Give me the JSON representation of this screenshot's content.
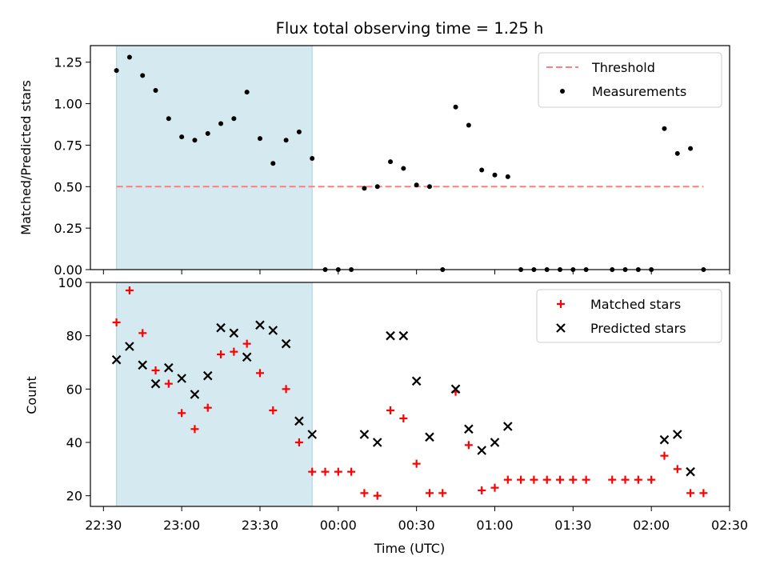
{
  "chart_data": [
    {
      "type": "scatter",
      "title": "Flux total observing time = 1.25 h",
      "xlabel": "",
      "ylabel": "Matched/Predicted stars",
      "xlim": [
        "22:25",
        "02:30"
      ],
      "ylim": [
        0,
        1.35
      ],
      "yticks": [
        "0.00",
        "0.25",
        "0.50",
        "0.75",
        "1.00",
        "1.25"
      ],
      "shaded_interval": [
        "22:35",
        "23:50"
      ],
      "shade_color": "#d4e9f0",
      "legend_position": "upper right",
      "series": [
        {
          "name": "Threshold",
          "kind": "dashed-line",
          "color": "#ff7f7f",
          "points": [
            {
              "x": "22:35",
              "y": 0.5
            },
            {
              "x": "02:20",
              "y": 0.5
            }
          ]
        },
        {
          "name": "Measurements",
          "kind": "dot",
          "color": "#000000",
          "points": [
            {
              "x": "22:35",
              "y": 1.2
            },
            {
              "x": "22:40",
              "y": 1.28
            },
            {
              "x": "22:45",
              "y": 1.17
            },
            {
              "x": "22:50",
              "y": 1.08
            },
            {
              "x": "22:55",
              "y": 0.91
            },
            {
              "x": "23:00",
              "y": 0.8
            },
            {
              "x": "23:05",
              "y": 0.78
            },
            {
              "x": "23:10",
              "y": 0.82
            },
            {
              "x": "23:15",
              "y": 0.88
            },
            {
              "x": "23:20",
              "y": 0.91
            },
            {
              "x": "23:25",
              "y": 1.07
            },
            {
              "x": "23:30",
              "y": 0.79
            },
            {
              "x": "23:35",
              "y": 0.64
            },
            {
              "x": "23:40",
              "y": 0.78
            },
            {
              "x": "23:45",
              "y": 0.83
            },
            {
              "x": "23:50",
              "y": 0.67
            },
            {
              "x": "23:55",
              "y": 0.0
            },
            {
              "x": "00:00",
              "y": 0.0
            },
            {
              "x": "00:05",
              "y": 0.0
            },
            {
              "x": "00:10",
              "y": 0.49
            },
            {
              "x": "00:15",
              "y": 0.5
            },
            {
              "x": "00:20",
              "y": 0.65
            },
            {
              "x": "00:25",
              "y": 0.61
            },
            {
              "x": "00:30",
              "y": 0.51
            },
            {
              "x": "00:35",
              "y": 0.5
            },
            {
              "x": "00:40",
              "y": 0.0
            },
            {
              "x": "00:45",
              "y": 0.98
            },
            {
              "x": "00:50",
              "y": 0.87
            },
            {
              "x": "00:55",
              "y": 0.6
            },
            {
              "x": "01:00",
              "y": 0.57
            },
            {
              "x": "01:05",
              "y": 0.56
            },
            {
              "x": "01:10",
              "y": 0.0
            },
            {
              "x": "01:15",
              "y": 0.0
            },
            {
              "x": "01:20",
              "y": 0.0
            },
            {
              "x": "01:25",
              "y": 0.0
            },
            {
              "x": "01:30",
              "y": 0.0
            },
            {
              "x": "01:35",
              "y": 0.0
            },
            {
              "x": "01:45",
              "y": 0.0
            },
            {
              "x": "01:50",
              "y": 0.0
            },
            {
              "x": "01:55",
              "y": 0.0
            },
            {
              "x": "02:00",
              "y": 0.0
            },
            {
              "x": "02:05",
              "y": 0.85
            },
            {
              "x": "02:10",
              "y": 0.7
            },
            {
              "x": "02:15",
              "y": 0.73
            },
            {
              "x": "02:20",
              "y": 0.0
            }
          ]
        }
      ]
    },
    {
      "type": "scatter",
      "title": "",
      "xlabel": "Time (UTC)",
      "ylabel": "Count",
      "xlim": [
        "22:25",
        "02:30"
      ],
      "ylim": [
        16,
        100
      ],
      "yticks": [
        "20",
        "40",
        "60",
        "80",
        "100"
      ],
      "xticks": [
        "22:30",
        "23:00",
        "23:30",
        "00:00",
        "00:30",
        "01:00",
        "01:30",
        "02:00",
        "02:30"
      ],
      "shaded_interval": [
        "22:35",
        "23:50"
      ],
      "shade_color": "#d4e9f0",
      "legend_position": "upper right",
      "series": [
        {
          "name": "Matched stars",
          "kind": "plus",
          "color": "#ff0000",
          "points": [
            {
              "x": "22:35",
              "y": 85
            },
            {
              "x": "22:40",
              "y": 97
            },
            {
              "x": "22:45",
              "y": 81
            },
            {
              "x": "22:50",
              "y": 67
            },
            {
              "x": "22:55",
              "y": 62
            },
            {
              "x": "23:00",
              "y": 51
            },
            {
              "x": "23:05",
              "y": 45
            },
            {
              "x": "23:10",
              "y": 53
            },
            {
              "x": "23:15",
              "y": 73
            },
            {
              "x": "23:20",
              "y": 74
            },
            {
              "x": "23:25",
              "y": 77
            },
            {
              "x": "23:30",
              "y": 66
            },
            {
              "x": "23:35",
              "y": 52
            },
            {
              "x": "23:40",
              "y": 60
            },
            {
              "x": "23:45",
              "y": 40
            },
            {
              "x": "23:50",
              "y": 29
            },
            {
              "x": "23:55",
              "y": 29
            },
            {
              "x": "00:00",
              "y": 29
            },
            {
              "x": "00:05",
              "y": 29
            },
            {
              "x": "00:10",
              "y": 21
            },
            {
              "x": "00:15",
              "y": 20
            },
            {
              "x": "00:20",
              "y": 52
            },
            {
              "x": "00:25",
              "y": 49
            },
            {
              "x": "00:30",
              "y": 32
            },
            {
              "x": "00:35",
              "y": 21
            },
            {
              "x": "00:40",
              "y": 21
            },
            {
              "x": "00:45",
              "y": 59
            },
            {
              "x": "00:50",
              "y": 39
            },
            {
              "x": "00:55",
              "y": 22
            },
            {
              "x": "01:00",
              "y": 23
            },
            {
              "x": "01:05",
              "y": 26
            },
            {
              "x": "01:10",
              "y": 26
            },
            {
              "x": "01:15",
              "y": 26
            },
            {
              "x": "01:20",
              "y": 26
            },
            {
              "x": "01:25",
              "y": 26
            },
            {
              "x": "01:30",
              "y": 26
            },
            {
              "x": "01:35",
              "y": 26
            },
            {
              "x": "01:45",
              "y": 26
            },
            {
              "x": "01:50",
              "y": 26
            },
            {
              "x": "01:55",
              "y": 26
            },
            {
              "x": "02:00",
              "y": 26
            },
            {
              "x": "02:05",
              "y": 35
            },
            {
              "x": "02:10",
              "y": 30
            },
            {
              "x": "02:15",
              "y": 21
            },
            {
              "x": "02:20",
              "y": 21
            }
          ]
        },
        {
          "name": "Predicted stars",
          "kind": "x",
          "color": "#000000",
          "points": [
            {
              "x": "22:35",
              "y": 71
            },
            {
              "x": "22:40",
              "y": 76
            },
            {
              "x": "22:45",
              "y": 69
            },
            {
              "x": "22:50",
              "y": 62
            },
            {
              "x": "22:55",
              "y": 68
            },
            {
              "x": "23:00",
              "y": 64
            },
            {
              "x": "23:05",
              "y": 58
            },
            {
              "x": "23:10",
              "y": 65
            },
            {
              "x": "23:15",
              "y": 83
            },
            {
              "x": "23:20",
              "y": 81
            },
            {
              "x": "23:25",
              "y": 72
            },
            {
              "x": "23:30",
              "y": 84
            },
            {
              "x": "23:35",
              "y": 82
            },
            {
              "x": "23:40",
              "y": 77
            },
            {
              "x": "23:45",
              "y": 48
            },
            {
              "x": "23:50",
              "y": 43
            },
            {
              "x": "00:10",
              "y": 43
            },
            {
              "x": "00:15",
              "y": 40
            },
            {
              "x": "00:20",
              "y": 80
            },
            {
              "x": "00:25",
              "y": 80
            },
            {
              "x": "00:30",
              "y": 63
            },
            {
              "x": "00:35",
              "y": 42
            },
            {
              "x": "00:45",
              "y": 60
            },
            {
              "x": "00:50",
              "y": 45
            },
            {
              "x": "00:55",
              "y": 37
            },
            {
              "x": "01:00",
              "y": 40
            },
            {
              "x": "01:05",
              "y": 46
            },
            {
              "x": "02:05",
              "y": 41
            },
            {
              "x": "02:10",
              "y": 43
            },
            {
              "x": "02:15",
              "y": 29
            }
          ]
        }
      ]
    }
  ]
}
